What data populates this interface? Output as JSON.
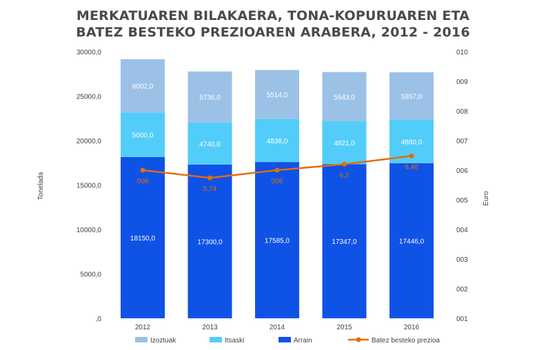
{
  "chart_data": {
    "type": "bar",
    "stacked": true,
    "title_lines": [
      "MERKATUAREN BILAKAERA, TONA-KOPURUAREN ETA",
      "BATEZ BESTEKO PREZIOAREN ARABERA, 2012 - 2016"
    ],
    "categories": [
      "2012",
      "2013",
      "2014",
      "2015",
      "2016"
    ],
    "ylabel": "Tonelada",
    "y2label": "Euro",
    "ylim": [
      0,
      30000
    ],
    "y_ticks": [
      ",0",
      "5000,0",
      "10000,0",
      "15000,0",
      "20000,0",
      "25000,0",
      "30000,0"
    ],
    "y2lim": [
      1,
      10
    ],
    "y2_ticks": [
      "001",
      "002",
      "003",
      "004",
      "005",
      "006",
      "007",
      "008",
      "009",
      "010"
    ],
    "grid": false,
    "legend_position": "bottom",
    "series": [
      {
        "name": "Arrain",
        "kind": "bar",
        "color": "#0f52e6",
        "values": [
          18150.0,
          17300.0,
          17585.0,
          17347.0,
          17446.0
        ],
        "labels": [
          "18150,0",
          "17300,0",
          "17585,0",
          "17347,0",
          "17446,0"
        ]
      },
      {
        "name": "Itsaski",
        "kind": "bar",
        "color": "#52cdfa",
        "values": [
          5000.0,
          4740.0,
          4838.0,
          4821.0,
          4880.0
        ],
        "labels": [
          "5000,0",
          "4740,0",
          "4838,0",
          "4821,0",
          "4880,0"
        ]
      },
      {
        "name": "Izoztuak",
        "kind": "bar",
        "color": "#9cc1e6",
        "values": [
          6002.0,
          5736.0,
          5514.0,
          5543.0,
          5357.0
        ],
        "labels": [
          "6002,0",
          "5736,0",
          "5514,0",
          "5543,0",
          "5357,0"
        ]
      },
      {
        "name": "Batez besteko prezioa",
        "kind": "line",
        "axis": "secondary",
        "color": "#e36c0a",
        "values": [
          6.0,
          5.74,
          6.0,
          6.2,
          6.48
        ],
        "labels": [
          "006",
          "5,74",
          "006",
          "6,2",
          "6,48"
        ]
      }
    ],
    "legend_order": [
      "Izoztuak",
      "Itsaski",
      "Arrain",
      "Batez besteko prezioa"
    ]
  }
}
